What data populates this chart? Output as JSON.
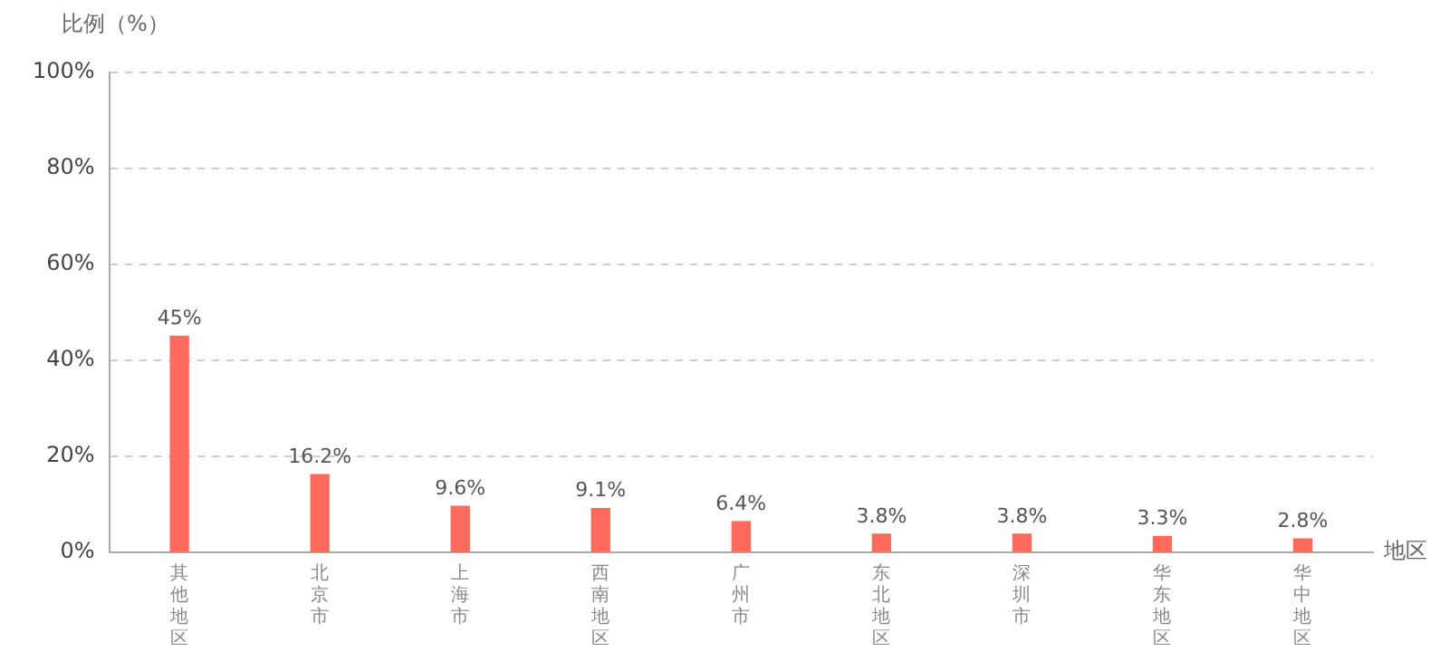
{
  "chart_data": {
    "type": "bar",
    "ylabel": "比例（%）",
    "xlabel": "地区",
    "categories": [
      "其他地区",
      "北京市",
      "上海市",
      "西南地区",
      "广州市",
      "东北地区",
      "深圳市",
      "华东地区",
      "华中地区"
    ],
    "values": [
      45,
      16.2,
      9.6,
      9.1,
      6.4,
      3.8,
      3.8,
      3.3,
      2.8
    ],
    "color": "#ff6a5c",
    "ylim": [
      0,
      100
    ],
    "yticks": [
      {
        "value": 0,
        "label": "0%"
      },
      {
        "value": 20,
        "label": "20%"
      },
      {
        "value": 40,
        "label": "40%"
      },
      {
        "value": 60,
        "label": "60%"
      },
      {
        "value": 80,
        "label": "80%"
      },
      {
        "value": 100,
        "label": "100%"
      }
    ],
    "value_labels": [
      "45%",
      "16.2%",
      "9.6%",
      "9.1%",
      "6.4%",
      "3.8%",
      "3.8%",
      "3.3%",
      "2.8%"
    ],
    "grid": "y",
    "legend": false
  }
}
